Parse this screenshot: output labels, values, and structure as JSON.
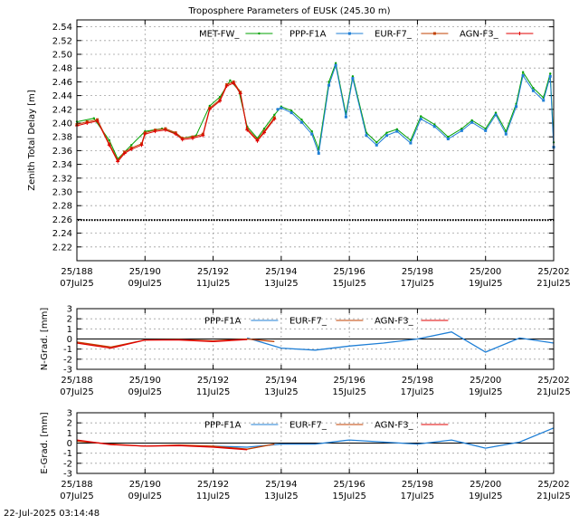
{
  "chart_data": [
    {
      "type": "line",
      "title": "Troposphere Parameters of EUSK (245.30 m)",
      "ylabel": "Zenith Total Delay [m]",
      "xlim": [
        188,
        202
      ],
      "ylim": [
        2.2,
        2.55
      ],
      "yticks": [
        2.22,
        2.24,
        2.26,
        2.28,
        2.3,
        2.32,
        2.34,
        2.36,
        2.38,
        2.4,
        2.42,
        2.44,
        2.46,
        2.48,
        2.5,
        2.52,
        2.54
      ],
      "ytick_labels": [
        "2.22",
        "2.24",
        "2.26",
        "2.28",
        "2.30",
        "2.32",
        "2.34",
        "2.36",
        "2.38",
        "2.40",
        "2.42",
        "2.44",
        "2.46",
        "2.48",
        "2.50",
        "2.52",
        "2.54"
      ],
      "xticks": [
        188,
        190,
        192,
        194,
        196,
        198,
        200,
        202
      ],
      "xtick_labels": [
        [
          "25/188",
          "07Jul25"
        ],
        [
          "25/190",
          "09Jul25"
        ],
        [
          "25/192",
          "11Jul25"
        ],
        [
          "25/194",
          "13Jul25"
        ],
        [
          "25/196",
          "15Jul25"
        ],
        [
          "25/198",
          "17Jul25"
        ],
        [
          "25/200",
          "19Jul25"
        ],
        [
          "25/202",
          "21Jul25"
        ]
      ],
      "grid": true,
      "legend_position": "top",
      "series": [
        {
          "name": "MET-FW_",
          "color": "#00a000",
          "marker": "point",
          "x": [
            188.0,
            188.5,
            188.95,
            189.2,
            189.6,
            190.0,
            190.5,
            190.9,
            191.1,
            191.5,
            191.9,
            192.2,
            192.5,
            192.75,
            193.0,
            193.3,
            193.5,
            193.8,
            194.0,
            194.3,
            194.6,
            194.9,
            195.1,
            195.4,
            195.6,
            195.9,
            196.1,
            196.5,
            196.8,
            197.1,
            197.4,
            197.8,
            198.1,
            198.5,
            198.9,
            199.3,
            199.6,
            200.0,
            200.3,
            200.6,
            200.9,
            201.1,
            201.4,
            201.7,
            201.9,
            202.0
          ],
          "y": [
            2.402,
            2.407,
            2.375,
            2.348,
            2.368,
            2.388,
            2.392,
            2.385,
            2.378,
            2.382,
            2.425,
            2.438,
            2.462,
            2.448,
            2.395,
            2.378,
            2.392,
            2.412,
            2.424,
            2.418,
            2.405,
            2.388,
            2.362,
            2.46,
            2.487,
            2.413,
            2.468,
            2.386,
            2.372,
            2.386,
            2.391,
            2.375,
            2.41,
            2.398,
            2.38,
            2.392,
            2.404,
            2.392,
            2.415,
            2.388,
            2.428,
            2.474,
            2.451,
            2.437,
            2.472,
            2.372
          ]
        },
        {
          "name": "PPP-F1A",
          "color": "#1f7fd6",
          "marker": "square",
          "x": [
            193.9,
            194.0,
            194.3,
            194.6,
            194.9,
            195.1,
            195.4,
            195.6,
            195.9,
            196.1,
            196.5,
            196.8,
            197.1,
            197.4,
            197.8,
            198.1,
            198.5,
            198.9,
            199.3,
            199.6,
            200.0,
            200.3,
            200.6,
            200.9,
            201.1,
            201.4,
            201.7,
            201.9,
            202.0
          ],
          "y": [
            2.42,
            2.422,
            2.415,
            2.401,
            2.384,
            2.356,
            2.455,
            2.484,
            2.409,
            2.465,
            2.382,
            2.368,
            2.382,
            2.388,
            2.371,
            2.406,
            2.395,
            2.377,
            2.389,
            2.401,
            2.389,
            2.412,
            2.384,
            2.424,
            2.469,
            2.447,
            2.433,
            2.468,
            2.365
          ]
        },
        {
          "name": "EUR-F7_",
          "color": "#c04000",
          "marker": "square",
          "x": [
            188.0,
            188.3,
            188.6,
            188.95,
            189.2,
            189.4,
            189.6,
            189.9,
            190.0,
            190.3,
            190.6,
            190.9,
            191.1,
            191.4,
            191.7,
            191.9,
            192.2,
            192.4,
            192.6,
            192.8,
            193.0,
            193.3,
            193.5,
            193.8
          ],
          "y": [
            2.398,
            2.402,
            2.405,
            2.37,
            2.346,
            2.358,
            2.364,
            2.37,
            2.386,
            2.39,
            2.392,
            2.386,
            2.378,
            2.38,
            2.384,
            2.422,
            2.434,
            2.456,
            2.46,
            2.445,
            2.392,
            2.376,
            2.388,
            2.408
          ]
        },
        {
          "name": "AGN-F3_",
          "color": "#e00000",
          "marker": "plus",
          "x": [
            188.0,
            188.3,
            188.6,
            188.95,
            189.2,
            189.4,
            189.6,
            189.9,
            190.0,
            190.3,
            190.6,
            190.9,
            191.1,
            191.4,
            191.7,
            191.9,
            192.2,
            192.4,
            192.6,
            192.8,
            193.0,
            193.3,
            193.5,
            193.8
          ],
          "y": [
            2.396,
            2.4,
            2.403,
            2.368,
            2.344,
            2.356,
            2.362,
            2.368,
            2.384,
            2.388,
            2.39,
            2.384,
            2.376,
            2.378,
            2.382,
            2.42,
            2.432,
            2.454,
            2.458,
            2.443,
            2.39,
            2.374,
            2.386,
            2.406
          ]
        },
        {
          "name": "",
          "color": "#000000",
          "marker": "point",
          "x": [
            188.0,
            202.0
          ],
          "y": [
            2.259,
            2.259
          ]
        }
      ]
    },
    {
      "type": "line",
      "ylabel": "N-Grad. [mm]",
      "xlim": [
        188,
        202
      ],
      "ylim": [
        -3,
        3
      ],
      "yticks": [
        -3,
        -2,
        -1,
        0,
        1,
        2,
        3
      ],
      "ytick_labels": [
        "-3",
        "-2",
        "-1",
        "0",
        "1",
        "2",
        "3"
      ],
      "xticks": [
        188,
        190,
        192,
        194,
        196,
        198,
        200,
        202
      ],
      "xtick_labels": [
        [
          "25/188",
          "07Jul25"
        ],
        [
          "25/190",
          "09Jul25"
        ],
        [
          "25/192",
          "11Jul25"
        ],
        [
          "25/194",
          "13Jul25"
        ],
        [
          "25/196",
          "15Jul25"
        ],
        [
          "25/198",
          "17Jul25"
        ],
        [
          "25/200",
          "19Jul25"
        ],
        [
          "25/202",
          "21Jul25"
        ]
      ],
      "grid": true,
      "legend_position": "top",
      "series": [
        {
          "name": "PPP-F1A",
          "color": "#1f7fd6",
          "x": [
            193.0,
            194.0,
            195.0,
            196.0,
            197.0,
            198.0,
            199.0,
            200.0,
            201.0,
            202.0
          ],
          "y": [
            0.1,
            -0.9,
            -1.1,
            -0.7,
            -0.4,
            0.0,
            0.7,
            -1.3,
            0.1,
            -0.4
          ]
        },
        {
          "name": "EUR-F7_",
          "color": "#c04000",
          "x": [
            188.0,
            189.0,
            190.0,
            191.0,
            192.0,
            193.0,
            193.8
          ],
          "y": [
            -0.3,
            -0.8,
            -0.1,
            -0.05,
            -0.2,
            0.0,
            -0.25
          ]
        },
        {
          "name": "AGN-F3_",
          "color": "#e00000",
          "x": [
            188.0,
            189.0,
            190.0,
            191.0,
            192.0,
            193.0
          ],
          "y": [
            -0.4,
            -0.9,
            -0.1,
            -0.1,
            -0.25,
            -0.05
          ]
        }
      ]
    },
    {
      "type": "line",
      "ylabel": "E-Grad. [mm]",
      "xlim": [
        188,
        202
      ],
      "ylim": [
        -3,
        3
      ],
      "yticks": [
        -3,
        -2,
        -1,
        0,
        1,
        2,
        3
      ],
      "ytick_labels": [
        "-3",
        "-2",
        "-1",
        "0",
        "1",
        "2",
        "3"
      ],
      "xticks": [
        188,
        190,
        192,
        194,
        196,
        198,
        200,
        202
      ],
      "xtick_labels": [
        [
          "25/188",
          "07Jul25"
        ],
        [
          "25/190",
          "09Jul25"
        ],
        [
          "25/192",
          "11Jul25"
        ],
        [
          "25/194",
          "13Jul25"
        ],
        [
          "25/196",
          "15Jul25"
        ],
        [
          "25/198",
          "17Jul25"
        ],
        [
          "25/200",
          "19Jul25"
        ],
        [
          "25/202",
          "21Jul25"
        ]
      ],
      "grid": true,
      "legend_position": "top",
      "series": [
        {
          "name": "PPP-F1A",
          "color": "#1f7fd6",
          "x": [
            192.0,
            193.0,
            194.0,
            195.0,
            196.0,
            197.0,
            198.0,
            199.0,
            200.0,
            201.0,
            202.0
          ],
          "y": [
            -0.3,
            -0.4,
            -0.1,
            -0.1,
            0.3,
            0.1,
            -0.1,
            0.3,
            -0.5,
            0.1,
            1.5
          ]
        },
        {
          "name": "EUR-F7_",
          "color": "#c04000",
          "x": [
            188.0,
            189.0,
            190.0,
            191.0,
            192.0,
            193.0,
            193.8
          ],
          "y": [
            0.2,
            -0.1,
            -0.3,
            -0.2,
            -0.3,
            -0.6,
            -0.1
          ]
        },
        {
          "name": "AGN-F3_",
          "color": "#e00000",
          "x": [
            188.0,
            189.0,
            190.0,
            191.0,
            192.0,
            193.0
          ],
          "y": [
            0.3,
            -0.15,
            -0.3,
            -0.25,
            -0.4,
            -0.65
          ]
        }
      ]
    }
  ],
  "footer": {
    "timestamp": "22-Jul-2025 03:14:48"
  }
}
